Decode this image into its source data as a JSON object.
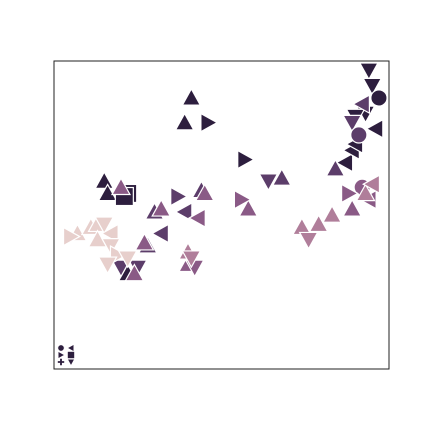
{
  "chart_data": {
    "type": "scatter",
    "title": "",
    "xlabel": "",
    "ylabel": "",
    "axes_ticks_visible": false,
    "grid": false,
    "xlim": [
      0,
      100
    ],
    "ylim": [
      0,
      100
    ],
    "legend": {
      "placement": "bottom-left",
      "entries": [
        {
          "marker": "circle",
          "color": "#2d1e3e"
        },
        {
          "marker": "triangle-left",
          "color": "#2d1e3e"
        },
        {
          "marker": "triangle-right",
          "color": "#2d1e3e"
        },
        {
          "marker": "square",
          "color": "#2d1e3e"
        },
        {
          "marker": "plus",
          "color": "#2d1e3e"
        },
        {
          "marker": "triangle-down",
          "color": "#2d1e3e"
        }
      ]
    },
    "series": [
      {
        "color": "#2d1e3e",
        "points": [
          {
            "x": 41,
            "y": 88,
            "marker": "triangle-up"
          },
          {
            "x": 39,
            "y": 80,
            "marker": "triangle-up"
          },
          {
            "x": 15,
            "y": 61,
            "marker": "triangle-up"
          },
          {
            "x": 16,
            "y": 57,
            "marker": "triangle-up"
          },
          {
            "x": 22,
            "y": 57,
            "marker": "square"
          },
          {
            "x": 21,
            "y": 56,
            "marker": "square"
          },
          {
            "x": 46,
            "y": 80,
            "marker": "triangle-right"
          },
          {
            "x": 57,
            "y": 68,
            "marker": "triangle-right"
          },
          {
            "x": 87,
            "y": 67,
            "marker": "triangle-left"
          },
          {
            "x": 89,
            "y": 71,
            "marker": "triangle-left"
          },
          {
            "x": 90,
            "y": 73,
            "marker": "triangle-left"
          },
          {
            "x": 94,
            "y": 97,
            "marker": "triangle-down"
          },
          {
            "x": 95,
            "y": 92,
            "marker": "triangle-down"
          },
          {
            "x": 93,
            "y": 83,
            "marker": "triangle-down"
          },
          {
            "x": 96,
            "y": 78,
            "marker": "triangle-left"
          },
          {
            "x": 97,
            "y": 88,
            "marker": "circle"
          },
          {
            "x": 90,
            "y": 82,
            "marker": "triangle-down"
          },
          {
            "x": 22,
            "y": 31,
            "marker": "triangle-up"
          }
        ]
      },
      {
        "color": "#5c3d6a",
        "points": [
          {
            "x": 68,
            "y": 62,
            "marker": "triangle-up"
          },
          {
            "x": 64,
            "y": 61,
            "marker": "triangle-down"
          },
          {
            "x": 37,
            "y": 56,
            "marker": "triangle-right"
          },
          {
            "x": 44,
            "y": 58,
            "marker": "triangle-up"
          },
          {
            "x": 39,
            "y": 51,
            "marker": "triangle-left"
          },
          {
            "x": 30,
            "y": 51,
            "marker": "triangle-up"
          },
          {
            "x": 28,
            "y": 40,
            "marker": "triangle-up"
          },
          {
            "x": 32,
            "y": 44,
            "marker": "triangle-left"
          },
          {
            "x": 84,
            "y": 65,
            "marker": "triangle-up"
          },
          {
            "x": 89,
            "y": 80,
            "marker": "triangle-down"
          },
          {
            "x": 92,
            "y": 86,
            "marker": "triangle-left"
          },
          {
            "x": 91,
            "y": 76,
            "marker": "circle"
          },
          {
            "x": 25,
            "y": 33,
            "marker": "triangle-down"
          },
          {
            "x": 20,
            "y": 33,
            "marker": "triangle-down"
          }
        ]
      },
      {
        "color": "#8a5a86",
        "points": [
          {
            "x": 45,
            "y": 57,
            "marker": "triangle-up"
          },
          {
            "x": 20,
            "y": 59,
            "marker": "triangle-up"
          },
          {
            "x": 32,
            "y": 52,
            "marker": "triangle-up"
          },
          {
            "x": 43,
            "y": 49,
            "marker": "triangle-left"
          },
          {
            "x": 27,
            "y": 41,
            "marker": "triangle-up"
          },
          {
            "x": 58,
            "y": 52,
            "marker": "triangle-up"
          },
          {
            "x": 56,
            "y": 55,
            "marker": "triangle-right"
          },
          {
            "x": 89,
            "y": 52,
            "marker": "triangle-up"
          },
          {
            "x": 92,
            "y": 59,
            "marker": "circle"
          },
          {
            "x": 88,
            "y": 57,
            "marker": "triangle-right"
          },
          {
            "x": 94,
            "y": 55,
            "marker": "triangle-left"
          },
          {
            "x": 40,
            "y": 34,
            "marker": "triangle-up"
          },
          {
            "x": 42,
            "y": 33,
            "marker": "triangle-down"
          },
          {
            "x": 24,
            "y": 31,
            "marker": "triangle-up"
          }
        ]
      },
      {
        "color": "#b07e9a",
        "points": [
          {
            "x": 79,
            "y": 47,
            "marker": "triangle-up"
          },
          {
            "x": 83,
            "y": 50,
            "marker": "triangle-up"
          },
          {
            "x": 93,
            "y": 57,
            "marker": "triangle-up"
          },
          {
            "x": 95,
            "y": 60,
            "marker": "triangle-left"
          },
          {
            "x": 74,
            "y": 46,
            "marker": "triangle-up"
          },
          {
            "x": 76,
            "y": 42,
            "marker": "triangle-down"
          },
          {
            "x": 40,
            "y": 38,
            "marker": "triangle-up"
          },
          {
            "x": 41,
            "y": 36,
            "marker": "triangle-down"
          }
        ]
      },
      {
        "color": "#e7cfcc",
        "points": [
          {
            "x": 7,
            "y": 44,
            "marker": "triangle-up"
          },
          {
            "x": 11,
            "y": 46,
            "marker": "triangle-up"
          },
          {
            "x": 13,
            "y": 47,
            "marker": "triangle-up"
          },
          {
            "x": 15,
            "y": 47,
            "marker": "triangle-down"
          },
          {
            "x": 17,
            "y": 44,
            "marker": "triangle-left"
          },
          {
            "x": 13,
            "y": 42,
            "marker": "triangle-up"
          },
          {
            "x": 17,
            "y": 40,
            "marker": "triangle-down"
          },
          {
            "x": 19,
            "y": 37,
            "marker": "triangle-right"
          },
          {
            "x": 16,
            "y": 34,
            "marker": "triangle-down"
          },
          {
            "x": 22,
            "y": 36,
            "marker": "triangle-down"
          },
          {
            "x": 5,
            "y": 43,
            "marker": "triangle-right"
          }
        ]
      }
    ]
  }
}
